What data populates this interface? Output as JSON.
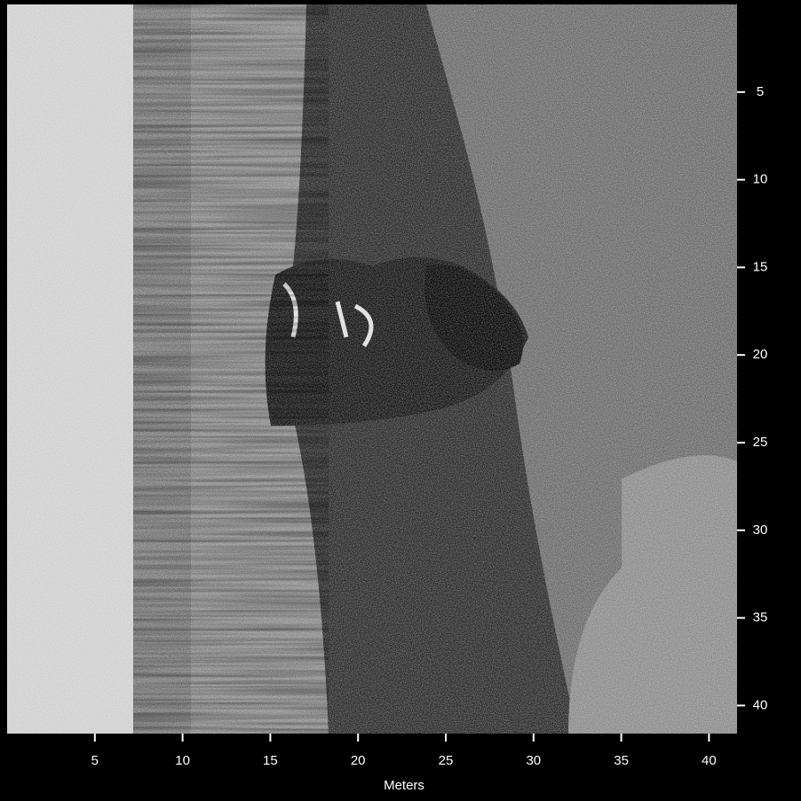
{
  "chart_data": {
    "type": "image",
    "xlabel": "Meters",
    "xlim": [
      0,
      41.6
    ],
    "ylim": [
      0,
      41.6
    ],
    "y_inverted": true,
    "xticks": [
      5,
      10,
      15,
      20,
      25,
      30,
      35,
      40
    ],
    "yticks": [
      5,
      10,
      15,
      20,
      25,
      30,
      35,
      40
    ]
  }
}
